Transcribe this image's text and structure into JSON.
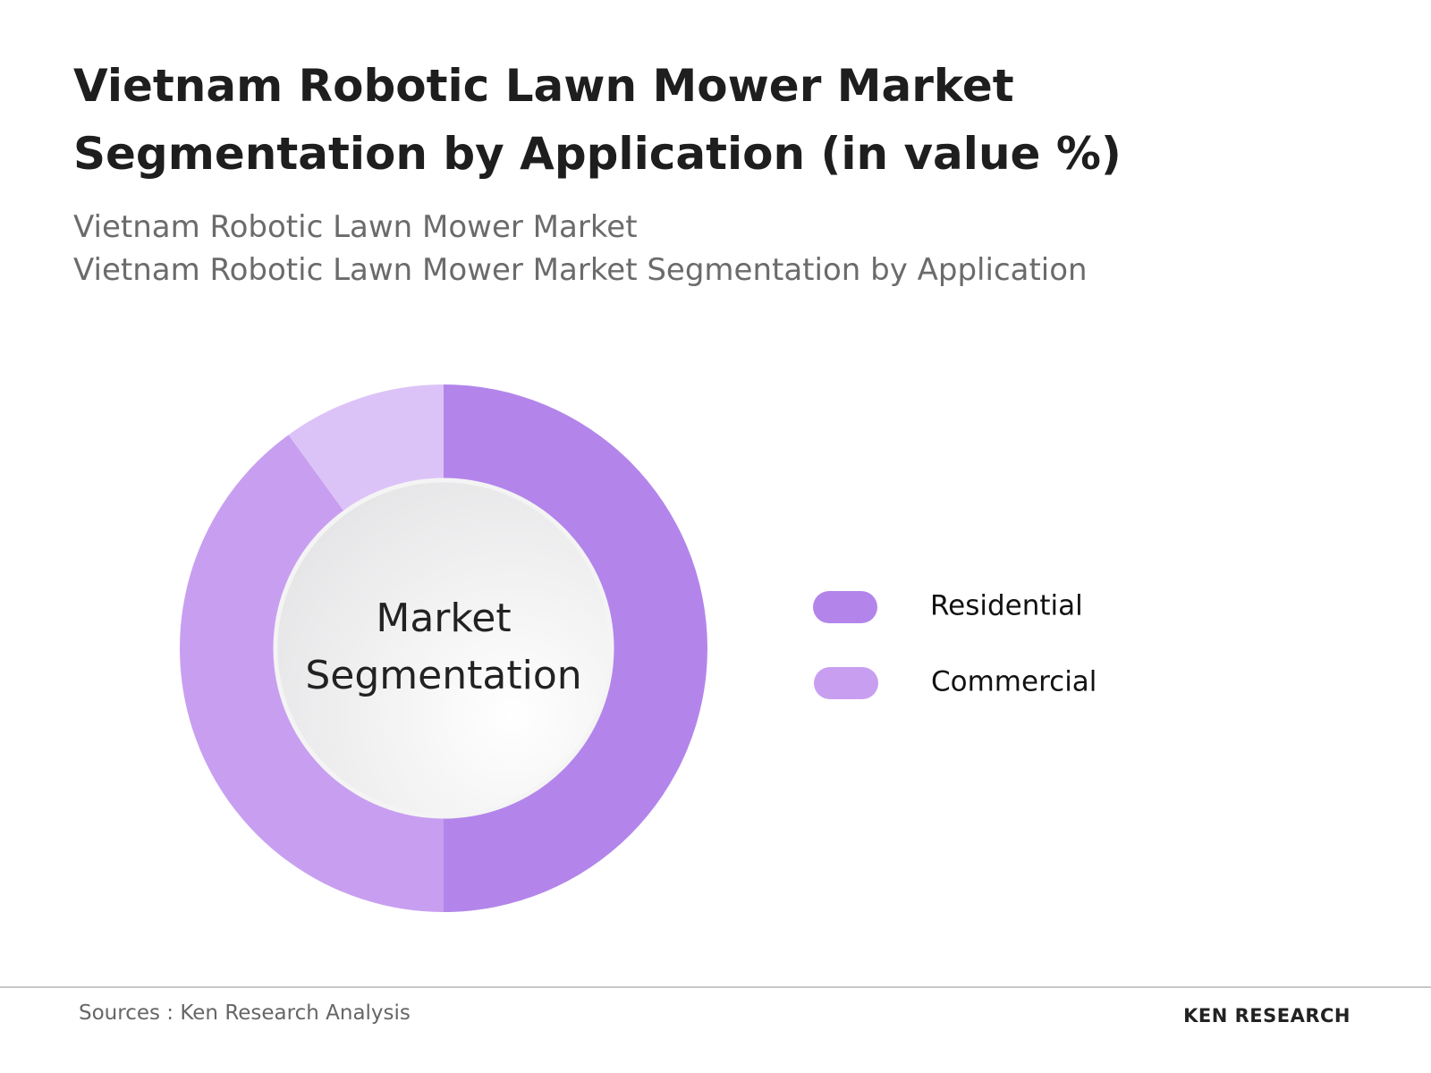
{
  "chart_data": {
    "type": "pie",
    "title": "Vietnam Robotic Lawn Mower Market Segmentation by Application (in value %)",
    "subtitle": [
      "Vietnam Robotic Lawn Mower Market",
      "Vietnam Robotic Lawn Mower Market Segmentation by Application"
    ],
    "center_label": "Market Segmentation",
    "categories": [
      "Residential",
      "Commercial",
      null
    ],
    "values": [
      50,
      40,
      10
    ],
    "colors": [
      "#b385eb",
      "#c89ff0",
      "#dcc3f7"
    ],
    "source": "Sources : Ken Research Analysis",
    "logo": "KEN RESEARCH"
  }
}
